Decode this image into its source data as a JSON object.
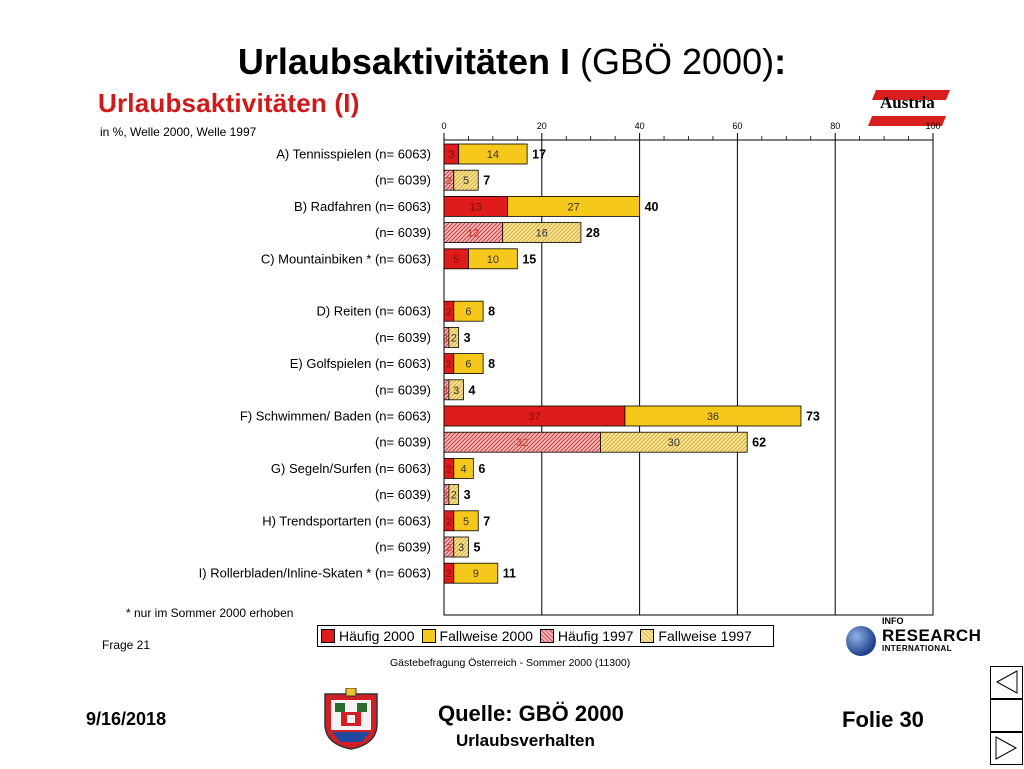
{
  "slide": {
    "title_bold": "Urlaubsaktivitäten I",
    "title_normal": " (GBÖ 2000)",
    "title_colon": ":",
    "date": "9/16/2018",
    "source_label": "Quelle: GBÖ 2000",
    "source_sub": "Urlaubsverhalten",
    "folie": "Folie 30"
  },
  "chart_heading": "Urlaubsaktivitäten (I)",
  "chart_sub": "in %, Welle 2000, Welle 1997",
  "footnote": "* nur im Sommer 2000 erhoben",
  "frage": "Frage 21",
  "source_small": "Gästebefragung Österreich - Sommer 2000 (11300)",
  "logos": {
    "austria": "Austria",
    "info_l1": "INFO",
    "info_l2": "RESEARCH",
    "info_l3": "INTERNATIONAL"
  },
  "colors": {
    "haeufig2000": "#e01b1b",
    "fallweise2000": "#f7c81c",
    "haeufig1997": "#eeaaaa",
    "fallweise1997": "#f9e08a"
  },
  "chart_data": {
    "type": "bar",
    "orientation": "horizontal",
    "stacked": true,
    "xlim": [
      0,
      100
    ],
    "xticks": [
      "0",
      "20",
      "40",
      "60",
      "80",
      "100"
    ],
    "legend": [
      "Häufig 2000",
      "Fallweise 2000",
      "Häufig 1997",
      "Fallweise 1997"
    ],
    "legend_position": "bottom",
    "rows": [
      {
        "label": "A) Tennisspielen (n= 6063)",
        "wave": "2000",
        "haeufig": 3,
        "fallweise": 14,
        "total": 17
      },
      {
        "label": "(n= 6039)",
        "wave": "1997",
        "haeufig": 2,
        "fallweise": 5,
        "total": 7
      },
      {
        "label": "B) Radfahren (n= 6063)",
        "wave": "2000",
        "haeufig": 13,
        "fallweise": 27,
        "total": 40
      },
      {
        "label": "(n= 6039)",
        "wave": "1997",
        "haeufig": 12,
        "fallweise": 16,
        "total": 28
      },
      {
        "label": "C) Mountainbiken * (n= 6063)",
        "wave": "2000",
        "haeufig": 5,
        "fallweise": 10,
        "total": 15
      },
      {
        "label": "",
        "wave": "gap"
      },
      {
        "label": "D) Reiten (n= 6063)",
        "wave": "2000",
        "haeufig": 2,
        "fallweise": 6,
        "total": 8
      },
      {
        "label": "(n= 6039)",
        "wave": "1997",
        "haeufig": 1,
        "fallweise": 2,
        "total": 3
      },
      {
        "label": "E) Golfspielen (n= 6063)",
        "wave": "2000",
        "haeufig": 2,
        "fallweise": 6,
        "total": 8
      },
      {
        "label": "(n= 6039)",
        "wave": "1997",
        "haeufig": 1,
        "fallweise": 3,
        "total": 4
      },
      {
        "label": "F) Schwimmen/ Baden (n= 6063)",
        "wave": "2000",
        "haeufig": 37,
        "fallweise": 36,
        "total": 73
      },
      {
        "label": "(n= 6039)",
        "wave": "1997",
        "haeufig": 32,
        "fallweise": 30,
        "total": 62
      },
      {
        "label": "G) Segeln/Surfen (n= 6063)",
        "wave": "2000",
        "haeufig": 2,
        "fallweise": 4,
        "total": 6
      },
      {
        "label": "(n= 6039)",
        "wave": "1997",
        "haeufig": 1,
        "fallweise": 2,
        "total": 3
      },
      {
        "label": "H) Trendsportarten (n= 6063)",
        "wave": "2000",
        "haeufig": 2,
        "fallweise": 5,
        "total": 7
      },
      {
        "label": "(n= 6039)",
        "wave": "1997",
        "haeufig": 2,
        "fallweise": 3,
        "total": 5
      },
      {
        "label": "I) Rollerbladen/Inline-Skaten * (n= 6063)",
        "wave": "2000",
        "haeufig": 2,
        "fallweise": 9,
        "total": 11
      }
    ]
  }
}
